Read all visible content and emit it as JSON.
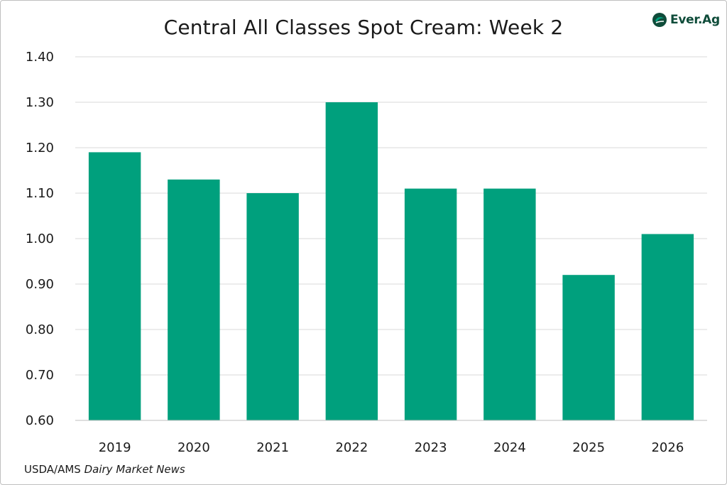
{
  "chart_data": {
    "type": "bar",
    "title": "Central All Classes Spot Cream: Week 2",
    "categories": [
      "2019",
      "2020",
      "2021",
      "2022",
      "2023",
      "2024",
      "2025",
      "2026"
    ],
    "values": [
      1.19,
      1.13,
      1.1,
      1.3,
      1.11,
      1.11,
      0.92,
      1.01
    ],
    "ylim": [
      0.6,
      1.4
    ],
    "yticks": [
      "0.60",
      "0.70",
      "0.80",
      "0.90",
      "1.00",
      "1.10",
      "1.20",
      "1.30",
      "1.40"
    ],
    "xlabel": "",
    "ylabel": "",
    "grid": true,
    "bar_color": "#00a07d"
  },
  "logo": {
    "text": "Ever.Ag",
    "icon": "ever-ag-leaf-icon",
    "color": "#0f4c3a",
    "accent": "#00a07d"
  },
  "source": {
    "prefix": "USDA/AMS",
    "italic": "Dairy Market News"
  }
}
